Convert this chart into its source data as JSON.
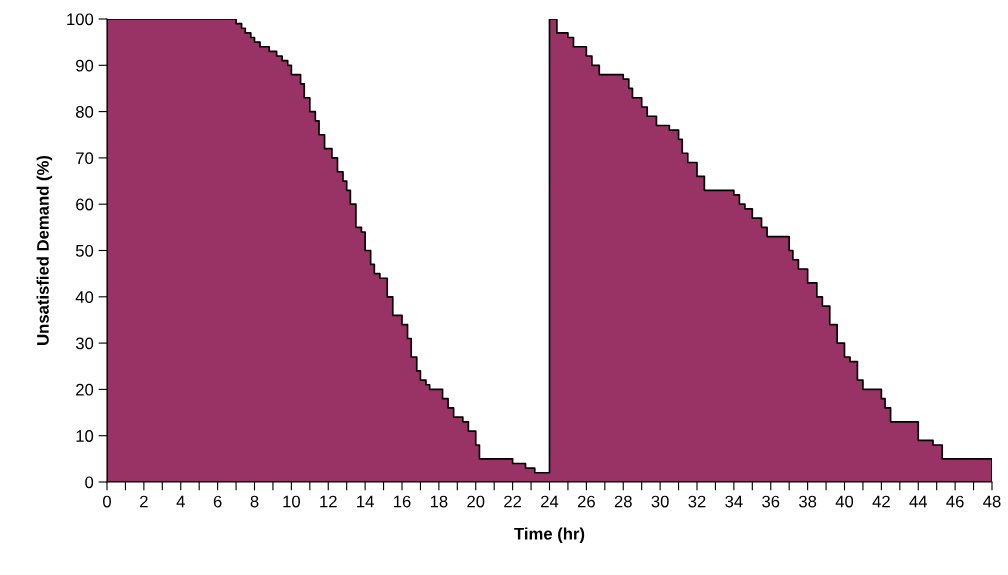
{
  "chart_data": {
    "type": "area",
    "xlabel": "Time (hr)",
    "ylabel": "Unsatisfied Demand (%)",
    "x": [
      0,
      7,
      7.3,
      7.5,
      7.8,
      8,
      8.3,
      8.8,
      9.2,
      9.5,
      9.8,
      10,
      10.5,
      10.7,
      11,
      11.3,
      11.5,
      11.8,
      12.2,
      12.5,
      12.8,
      13,
      13.2,
      13.5,
      13.8,
      14,
      14.3,
      14.5,
      14.8,
      15.2,
      15.5,
      16,
      16.3,
      16.5,
      16.8,
      17,
      17.3,
      17.5,
      18.2,
      18.5,
      18.8,
      19.3,
      19.6,
      20,
      20.2,
      22,
      22.7,
      23.2,
      24,
      24.4,
      25,
      25.3,
      26,
      26.3,
      26.7,
      28,
      28.3,
      28.5,
      29,
      29.3,
      29.8,
      30.5,
      31,
      31.2,
      31.5,
      32,
      32.4,
      34,
      34.3,
      34.6,
      35,
      35.5,
      35.8,
      37,
      37.2,
      37.5,
      38,
      38.5,
      38.8,
      39.2,
      39.6,
      40,
      40.3,
      40.7,
      41,
      42,
      42.2,
      42.5,
      44,
      44.8,
      45.3,
      48
    ],
    "series": [
      {
        "color": "#993366",
        "values": [
          100,
          99,
          98,
          97,
          96,
          95,
          94,
          93,
          92,
          91,
          90,
          88,
          86,
          83,
          80,
          78,
          75,
          72,
          70,
          67,
          65,
          63,
          60,
          55,
          54,
          50,
          47,
          45,
          44,
          40,
          36,
          34,
          31,
          27,
          24,
          22,
          21,
          20,
          18,
          16,
          14,
          13,
          11,
          8,
          5,
          4,
          3,
          2,
          100,
          97,
          96,
          94,
          92,
          90,
          88,
          87,
          85,
          83,
          81,
          79,
          77,
          76,
          74,
          71,
          69,
          66,
          63,
          62,
          60,
          59,
          57,
          55,
          53,
          50,
          48,
          46,
          43,
          40,
          38,
          34,
          30,
          27,
          26,
          22,
          20,
          18,
          16,
          13,
          9,
          8,
          5,
          5
        ]
      }
    ],
    "xlim": [
      0,
      48
    ],
    "ylim": [
      0,
      100
    ],
    "xticks": [
      0,
      {
        "value": 1,
        "label": null
      },
      2,
      {
        "value": 3,
        "label": null
      },
      4,
      {
        "value": 5,
        "label": null
      },
      6,
      {
        "value": 7,
        "label": null
      },
      8,
      {
        "value": 9,
        "label": null
      },
      10,
      {
        "value": 11,
        "label": null
      },
      12,
      {
        "value": 13,
        "label": null
      },
      14,
      {
        "value": 15,
        "label": null
      },
      16,
      {
        "value": 17,
        "label": null
      },
      18,
      {
        "value": 19,
        "label": null
      },
      20,
      {
        "value": 21,
        "label": null
      },
      22,
      {
        "value": 23,
        "label": null
      },
      24,
      {
        "value": 25,
        "label": null
      },
      26,
      {
        "value": 27,
        "label": null
      },
      28,
      {
        "value": 29,
        "label": null
      },
      30,
      {
        "value": 31,
        "label": null
      },
      32,
      {
        "value": 33,
        "label": null
      },
      34,
      {
        "value": 35,
        "label": null
      },
      36,
      {
        "value": 37,
        "label": null
      },
      38,
      {
        "value": 39,
        "label": null
      },
      40,
      {
        "value": 41,
        "label": null
      },
      42,
      {
        "value": 43,
        "label": null
      },
      44,
      {
        "value": 45,
        "label": null
      },
      46,
      {
        "value": 47,
        "label": null
      },
      48
    ],
    "yticks": [
      0,
      10,
      20,
      30,
      40,
      50,
      60,
      70,
      80,
      90,
      100
    ],
    "grid": false,
    "legend": false
  }
}
